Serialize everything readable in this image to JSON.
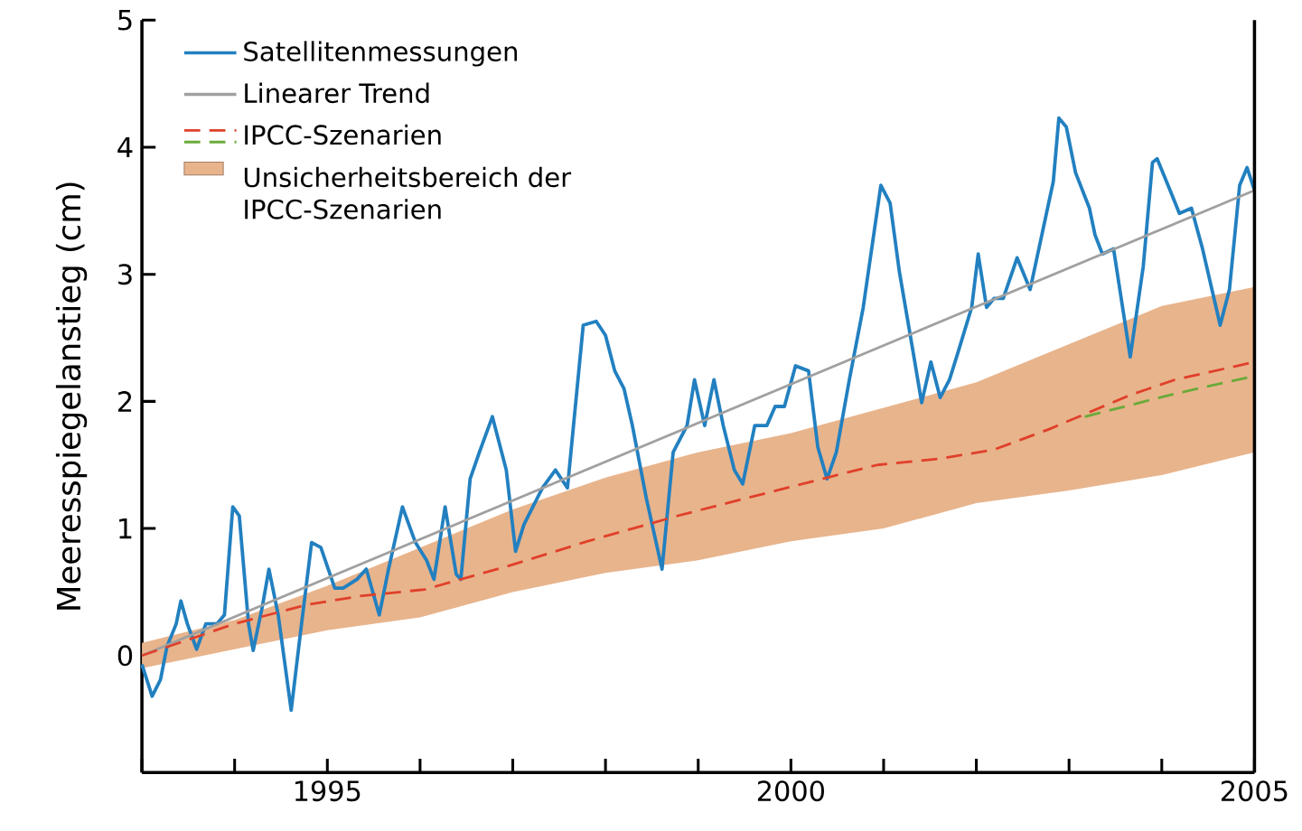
{
  "chart_data": {
    "type": "line",
    "ylabel": "Meeresspiegelanstieg (cm)",
    "x": [
      1993.0,
      1993.11,
      1993.2,
      1993.27,
      1993.37,
      1993.42,
      1993.49,
      1993.59,
      1993.69,
      1993.81,
      1993.89,
      1993.98,
      1994.05,
      1994.15,
      1994.2,
      1994.3,
      1994.37,
      1994.47,
      1994.61,
      1994.71,
      1994.83,
      1994.93,
      1995.08,
      1995.17,
      1995.32,
      1995.42,
      1995.56,
      1995.66,
      1995.81,
      1995.95,
      1996.07,
      1996.15,
      1996.27,
      1996.39,
      1996.44,
      1996.54,
      1996.64,
      1996.78,
      1996.93,
      1997.03,
      1997.12,
      1997.32,
      1997.46,
      1997.59,
      1997.76,
      1997.9,
      1998.0,
      1998.1,
      1998.2,
      1998.29,
      1998.44,
      1998.61,
      1998.73,
      1998.88,
      1998.96,
      1999.07,
      1999.17,
      1999.27,
      1999.39,
      1999.48,
      1999.61,
      1999.74,
      1999.83,
      1999.93,
      2000.05,
      2000.19,
      2000.29,
      2000.39,
      2000.49,
      2000.63,
      2000.78,
      2000.97,
      2001.07,
      2001.17,
      2001.32,
      2001.41,
      2001.51,
      2001.61,
      2001.71,
      2001.8,
      2001.95,
      2002.02,
      2002.11,
      2002.19,
      2002.29,
      2002.44,
      2002.58,
      2002.83,
      2002.89,
      2002.97,
      2003.07,
      2003.22,
      2003.28,
      2003.36,
      2003.48,
      2003.66,
      2003.8,
      2003.9,
      2003.95,
      2004.09,
      2004.19,
      2004.32,
      2004.44,
      2004.63,
      2004.73,
      2004.84,
      2004.92,
      2005.0
    ],
    "xlim": [
      1993,
      2005
    ],
    "xticks": [
      {
        "value": 1993,
        "label": null
      },
      {
        "value": 1994,
        "label": null
      },
      1995,
      {
        "value": 1996,
        "label": null
      },
      {
        "value": 1997,
        "label": null
      },
      {
        "value": 1998,
        "label": null
      },
      {
        "value": 1999,
        "label": null
      },
      2000,
      {
        "value": 2001,
        "label": null
      },
      {
        "value": 2002,
        "label": null
      },
      {
        "value": 2003,
        "label": null
      },
      {
        "value": 2004,
        "label": null
      },
      2005
    ],
    "ylim": [
      -0.92,
      5
    ],
    "yticks": [
      0,
      1,
      2,
      3,
      4,
      5
    ],
    "legend": "top left",
    "series": [
      {
        "name": "Satellitenmessungen",
        "color": "#2280c0",
        "values": [
          -0.07,
          -0.32,
          -0.19,
          0.07,
          0.25,
          0.43,
          0.25,
          0.05,
          0.25,
          0.25,
          0.32,
          1.17,
          1.1,
          0.25,
          0.04,
          0.39,
          0.68,
          0.32,
          -0.43,
          0.18,
          0.89,
          0.85,
          0.53,
          0.53,
          0.6,
          0.68,
          0.32,
          0.68,
          1.17,
          0.89,
          0.75,
          0.6,
          1.17,
          0.64,
          0.6,
          1.39,
          1.6,
          1.88,
          1.46,
          0.82,
          1.03,
          1.32,
          1.46,
          1.32,
          2.6,
          2.63,
          2.52,
          2.24,
          2.1,
          1.81,
          1.24,
          0.68,
          1.6,
          1.81,
          2.17,
          1.81,
          2.17,
          1.81,
          1.46,
          1.35,
          1.81,
          1.81,
          1.96,
          1.96,
          2.28,
          2.24,
          1.64,
          1.39,
          1.6,
          2.17,
          2.74,
          3.7,
          3.56,
          3.02,
          2.38,
          1.99,
          2.31,
          2.03,
          2.17,
          2.38,
          2.74,
          3.16,
          2.74,
          2.81,
          2.81,
          3.13,
          2.88,
          3.73,
          4.23,
          4.16,
          3.8,
          3.52,
          3.31,
          3.16,
          3.2,
          2.35,
          3.06,
          3.88,
          3.91,
          3.66,
          3.48,
          3.52,
          3.2,
          2.6,
          2.88,
          3.7,
          3.84,
          3.66
        ]
      },
      {
        "name": "Linearer Trend",
        "color": "#a0a0a0",
        "x": [
          1993,
          2005
        ],
        "values": [
          0.0,
          3.66
        ]
      },
      {
        "name": "IPCC-Szenarien",
        "color": "#e0402a",
        "line_style": "dashed",
        "x": [
          1993.0,
          1994.0,
          1994.78,
          1995.37,
          1996.05,
          1996.93,
          1997.81,
          1998.78,
          1999.85,
          2000.93,
          2001.61,
          2002.19,
          2002.78,
          2003.17,
          2003.66,
          2004.14,
          2005.0
        ],
        "values": [
          0.0,
          0.25,
          0.4,
          0.47,
          0.52,
          0.7,
          0.9,
          1.1,
          1.3,
          1.5,
          1.55,
          1.62,
          1.78,
          1.9,
          2.05,
          2.17,
          2.31
        ]
      },
      {
        "color": "#6aaa3a",
        "line_style": "dashed",
        "x": [
          2003.17,
          2004.14,
          2005.0
        ],
        "values": [
          1.88,
          2.06,
          2.2
        ]
      },
      {
        "type": "area",
        "name": "Unsicherheitsbereich der IPCC-Szenarien",
        "color": "#e8b48c",
        "x": [
          1993,
          1994,
          1995,
          1996,
          1997,
          1998,
          1999,
          2000,
          2001,
          2002,
          2003,
          2004,
          2005
        ],
        "values": [
          null,
          null,
          null,
          null,
          null,
          null,
          null,
          null,
          null,
          null,
          null,
          null,
          null
        ],
        "lower": [
          -0.1,
          0.05,
          0.2,
          0.3,
          0.5,
          0.65,
          0.75,
          0.9,
          1.0,
          1.2,
          1.3,
          1.42,
          1.6
        ],
        "upper": [
          0.1,
          0.28,
          0.55,
          0.85,
          1.15,
          1.4,
          1.6,
          1.75,
          1.95,
          2.15,
          2.45,
          2.75,
          2.9
        ]
      }
    ]
  }
}
